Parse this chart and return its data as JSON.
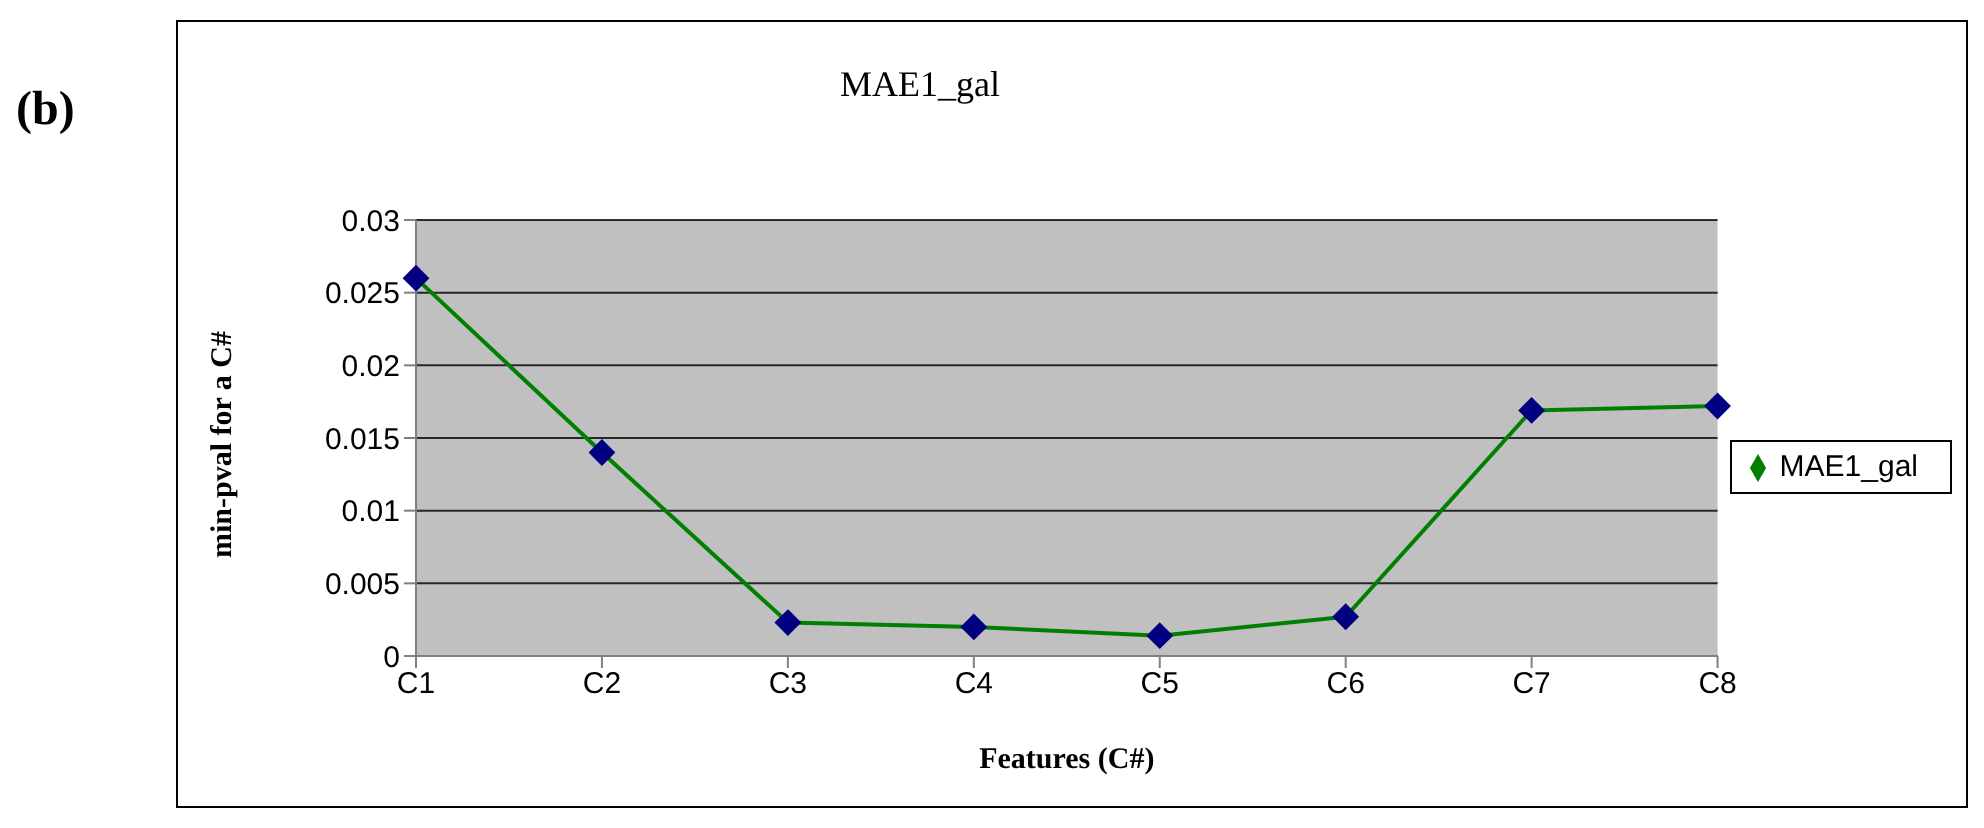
{
  "chart_data": {
    "type": "line",
    "title": "MAE1_gal",
    "xlabel": "Features (C#)",
    "ylabel": "min-pval for a C#",
    "annotations": [
      "(b)"
    ],
    "categories": [
      "C1",
      "C2",
      "C3",
      "C4",
      "C5",
      "C6",
      "C7",
      "C8"
    ],
    "series": [
      {
        "name": "MAE1_gal",
        "color": "#008000",
        "values": [
          0.026,
          0.014,
          0.0023,
          0.002,
          0.0014,
          0.0027,
          0.0169,
          0.0172
        ]
      }
    ],
    "ylim": [
      0,
      0.03
    ],
    "yticks": [
      0,
      0.005,
      0.01,
      0.015,
      0.02,
      0.025,
      0.03
    ],
    "grid": "y",
    "legend": "right",
    "marker": "diamond",
    "line_style": "solid"
  }
}
